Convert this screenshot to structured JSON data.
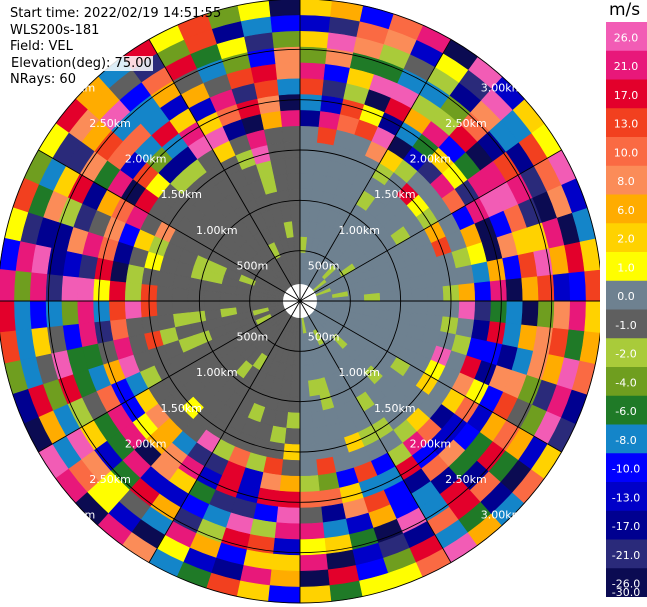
{
  "header": {
    "start_time": "Start time: 2022/02/19 14:51:55",
    "instrument": "WLS200s-181",
    "field": "Field: VEL",
    "elevation": "Elevation(deg): 75.00",
    "nrays": "NRays: 60"
  },
  "colorbar": {
    "unit": "m/s",
    "ticks": [
      "26.0",
      "21.0",
      "17.0",
      "13.0",
      "10.0",
      "8.0",
      "6.0",
      "2.0",
      "1.0",
      "0.0",
      "-1.0",
      "-2.0",
      "-4.0",
      "-6.0",
      "-8.0",
      "-10.0",
      "-13.0",
      "-17.0",
      "-21.0",
      "-26.0",
      "-30.0"
    ],
    "colors": [
      "#f25cb5",
      "#e8187a",
      "#e3002b",
      "#f2401f",
      "#fa6a43",
      "#fb8c58",
      "#ffac00",
      "#ffd200",
      "#fffe00",
      "#6e8190",
      "#5f5f5f",
      "#a9cb3a",
      "#6f9e1f",
      "#1f7a27",
      "#1485c9",
      "#0000ff",
      "#0000c8",
      "#000090",
      "#2a2a7a",
      "#0b0b52"
    ]
  },
  "chart_data": {
    "type": "heatmap",
    "projection": "polar PPI",
    "title": "",
    "field": "VEL",
    "units": "m/s",
    "nrays": 60,
    "range_rings_km": [
      "500m",
      "1.00km",
      "1.50km",
      "2.00km",
      "2.50km",
      "3.00km"
    ],
    "max_range_km": 3.0,
    "value_range": [
      -30.0,
      26.0
    ],
    "legend": "right"
  }
}
